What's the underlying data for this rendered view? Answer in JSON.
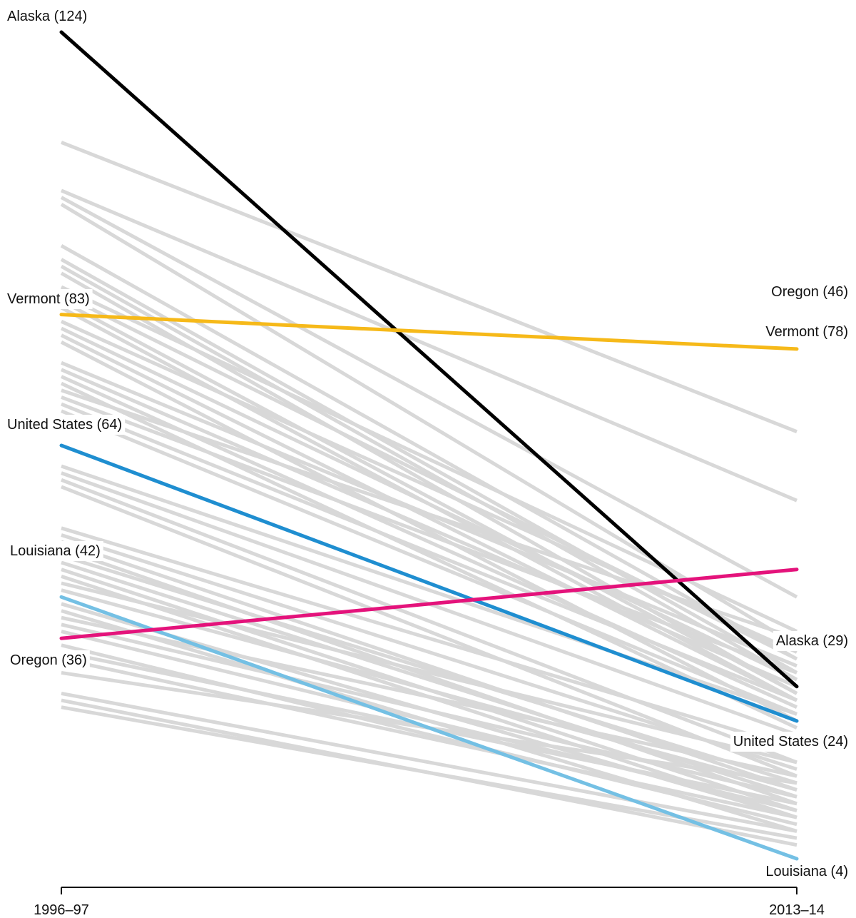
{
  "chart_data": {
    "type": "line",
    "subtype": "slope",
    "x": [
      "1996–97",
      "2013–14"
    ],
    "y_range": [
      0,
      128
    ],
    "grid": false,
    "highlighted_series": [
      {
        "name": "Alaska",
        "start": 124,
        "end": 29,
        "color": "#000000",
        "start_label": "Alaska (124)",
        "end_label": "Alaska (29)"
      },
      {
        "name": "Vermont",
        "start": 83,
        "end": 78,
        "color": "#f6b919",
        "start_label": "Vermont (83)",
        "end_label": "Vermont (78)"
      },
      {
        "name": "United States",
        "start": 64,
        "end": 24,
        "color": "#1f8ed0",
        "start_label": "United States (64)",
        "end_label": "United States (24)"
      },
      {
        "name": "Louisiana",
        "start": 42,
        "end": 4,
        "color": "#74c0e4",
        "start_label": "Louisiana (42)",
        "end_label": "Louisiana (4)"
      },
      {
        "name": "Oregon",
        "start": 36,
        "end": 46,
        "color": "#e4137b",
        "start_label": "Oregon (36)",
        "end_label": "Oregon (46)"
      }
    ],
    "background_series": [
      [
        108,
        66
      ],
      [
        101,
        56
      ],
      [
        100,
        42
      ],
      [
        99,
        35
      ],
      [
        93,
        33
      ],
      [
        91,
        31
      ],
      [
        90,
        30
      ],
      [
        89,
        28
      ],
      [
        87,
        37
      ],
      [
        86,
        33
      ],
      [
        85,
        28
      ],
      [
        84,
        27
      ],
      [
        82,
        34
      ],
      [
        81,
        30
      ],
      [
        80,
        27
      ],
      [
        79,
        24
      ],
      [
        76,
        32
      ],
      [
        75,
        29
      ],
      [
        74,
        26
      ],
      [
        73,
        23
      ],
      [
        72,
        36
      ],
      [
        71,
        31
      ],
      [
        70,
        27
      ],
      [
        69,
        25
      ],
      [
        61,
        25
      ],
      [
        60,
        22
      ],
      [
        59,
        18
      ],
      [
        58,
        16
      ],
      [
        52,
        20
      ],
      [
        51,
        17
      ],
      [
        50,
        14
      ],
      [
        49,
        12
      ],
      [
        48,
        15
      ],
      [
        47,
        13
      ],
      [
        46,
        11
      ],
      [
        45,
        10
      ],
      [
        44,
        18
      ],
      [
        43,
        14
      ],
      [
        41,
        10
      ],
      [
        40,
        8
      ],
      [
        39,
        16
      ],
      [
        38,
        13
      ],
      [
        37,
        11
      ],
      [
        35,
        9
      ],
      [
        34,
        12
      ],
      [
        33,
        10
      ],
      [
        31,
        15
      ],
      [
        28,
        8
      ],
      [
        27,
        6
      ],
      [
        26,
        7
      ]
    ],
    "background_color": "#d8d8d8"
  }
}
